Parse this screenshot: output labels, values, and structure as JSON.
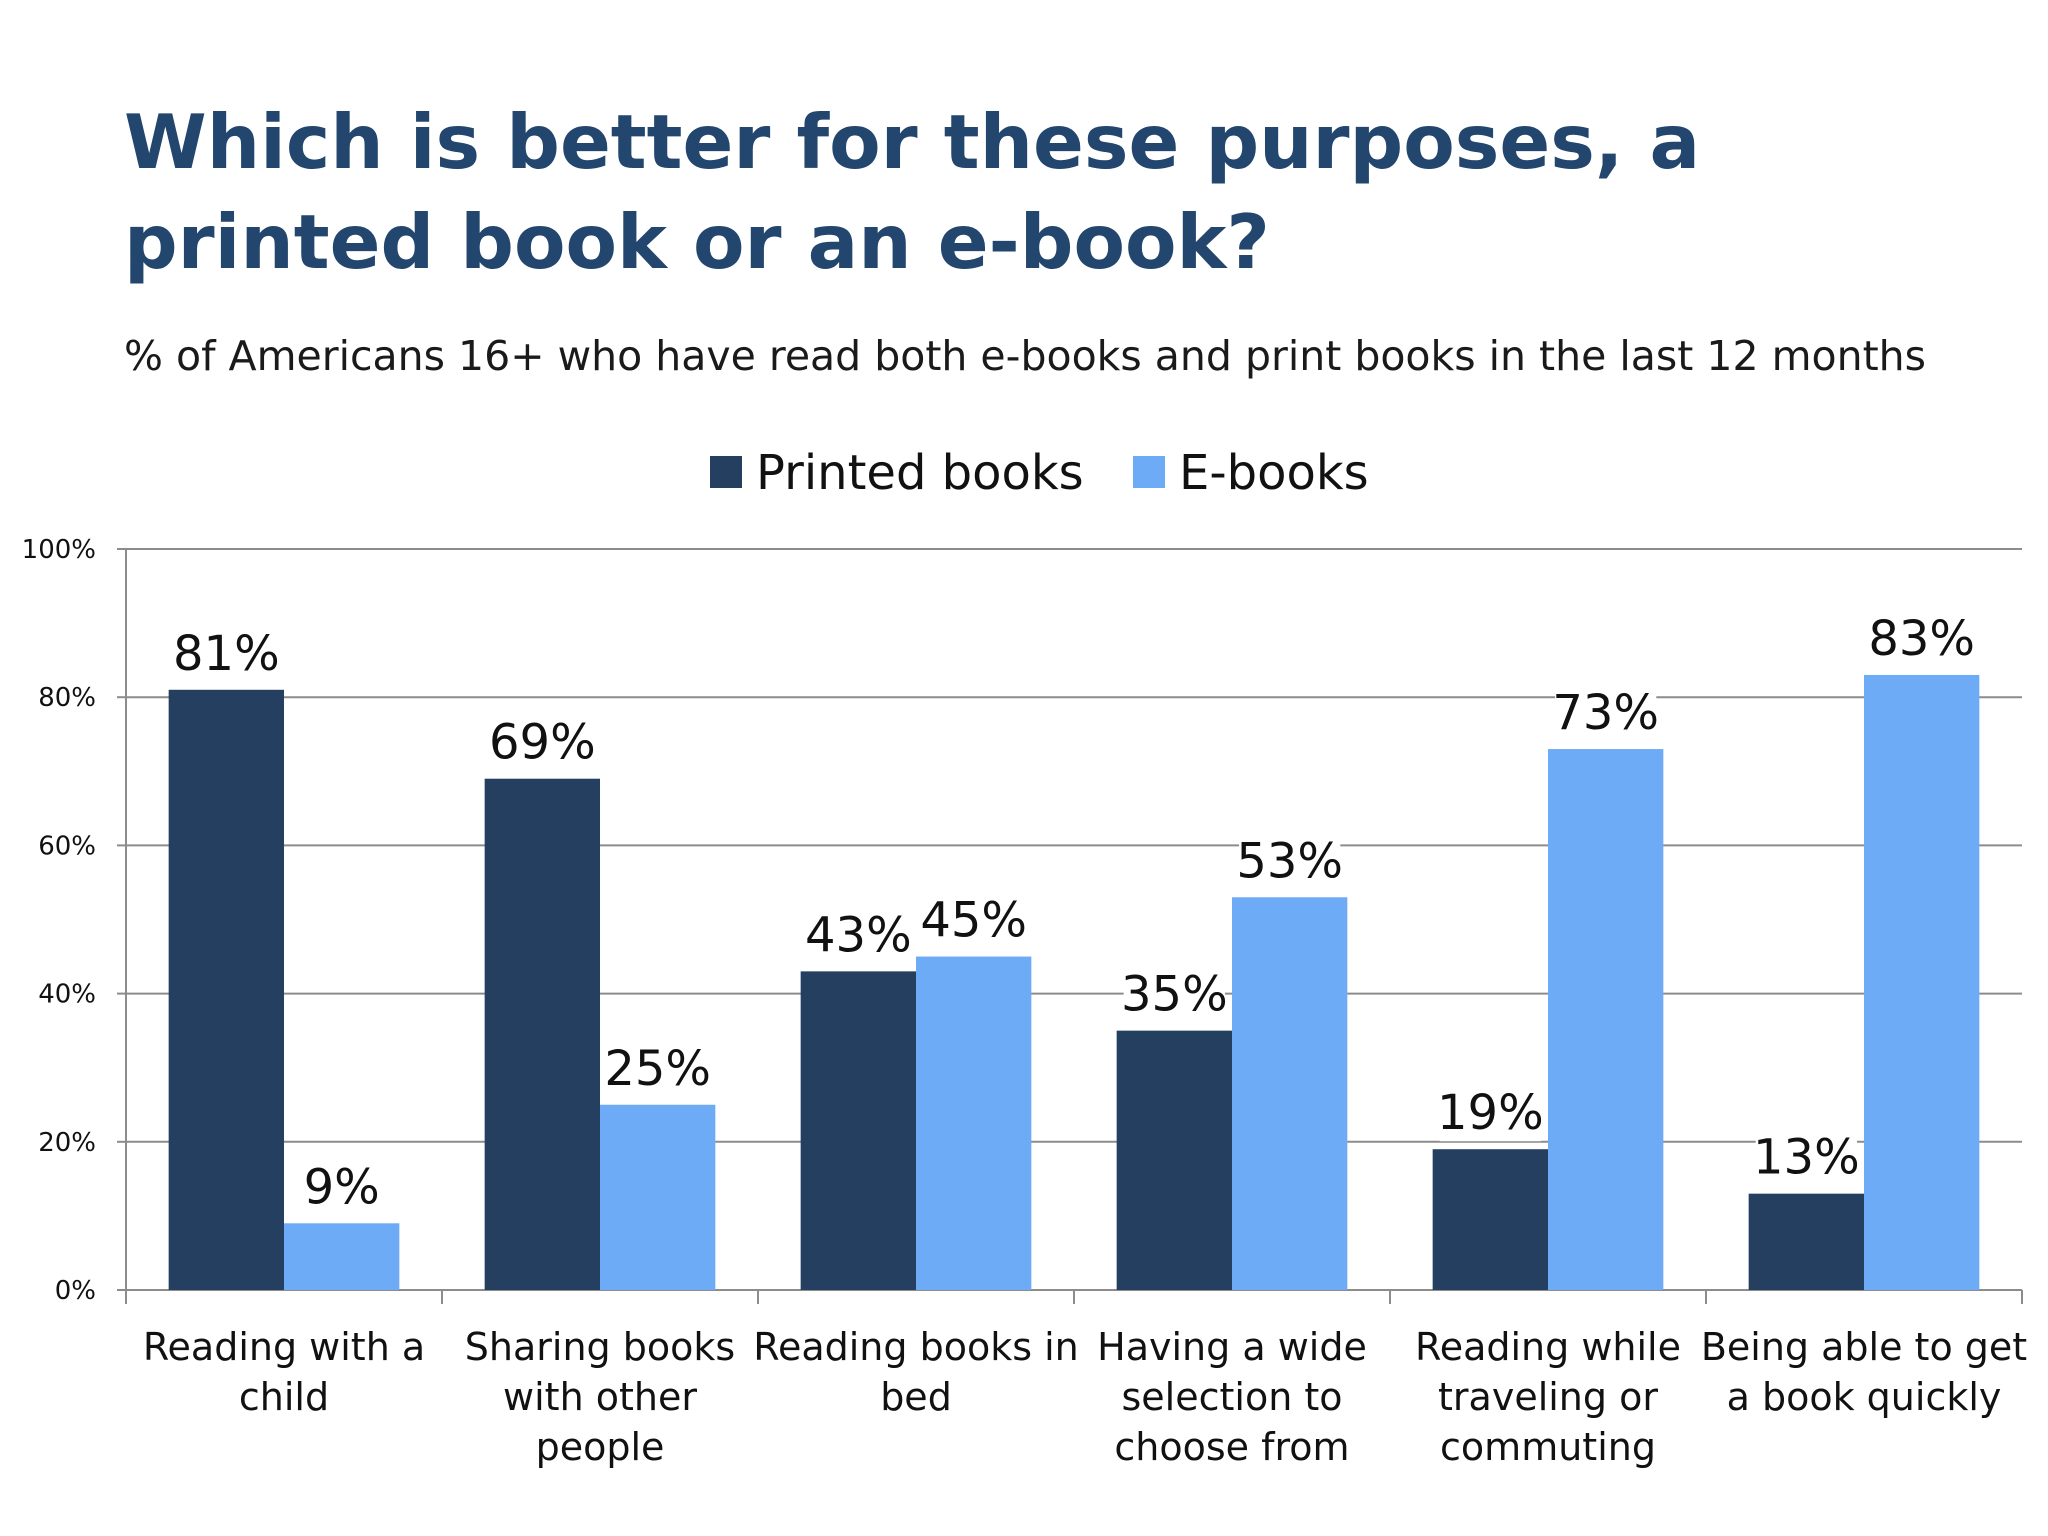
{
  "slide": {
    "title": "Which is better for these purposes, a printed book or an e-book?",
    "subtitle": "% of Americans 16+ who have read both e-books and print books in the last 12 months"
  },
  "colors": {
    "title": "#23466e",
    "printed": "#253f61",
    "ebooks": "#6eabf7",
    "grid": "#8c8c8c",
    "text": "#111111"
  },
  "chart_data": {
    "type": "bar",
    "title": "Which is better for these purposes, a printed book or an e-book?",
    "subtitle": "% of Americans 16+ who have read both e-books and print books in the last 12 months",
    "categories": [
      [
        "Reading with a",
        "child"
      ],
      [
        "Sharing books",
        "with other",
        "people"
      ],
      [
        "Reading books in",
        "bed"
      ],
      [
        "Having a wide",
        "selection to",
        "choose from"
      ],
      [
        "Reading while",
        "traveling or",
        "commuting"
      ],
      [
        "Being able to get",
        "a book quickly"
      ]
    ],
    "series": [
      {
        "name": "Printed books",
        "values": [
          81,
          69,
          43,
          35,
          19,
          13
        ],
        "labels": [
          "81%",
          "69%",
          "43%",
          "35%",
          "19%",
          "13%"
        ]
      },
      {
        "name": "E-books",
        "values": [
          9,
          25,
          45,
          53,
          73,
          83
        ],
        "labels": [
          "9%",
          "25%",
          "45%",
          "53%",
          "73%",
          "83%"
        ]
      }
    ],
    "ylim": [
      0,
      100
    ],
    "yticks": [
      "0%",
      "20%",
      "40%",
      "60%",
      "80%",
      "100%"
    ],
    "ytick_values": [
      0,
      20,
      40,
      60,
      80,
      100
    ],
    "xlabel": "",
    "ylabel": "",
    "grid": true,
    "legend": "top-center"
  }
}
